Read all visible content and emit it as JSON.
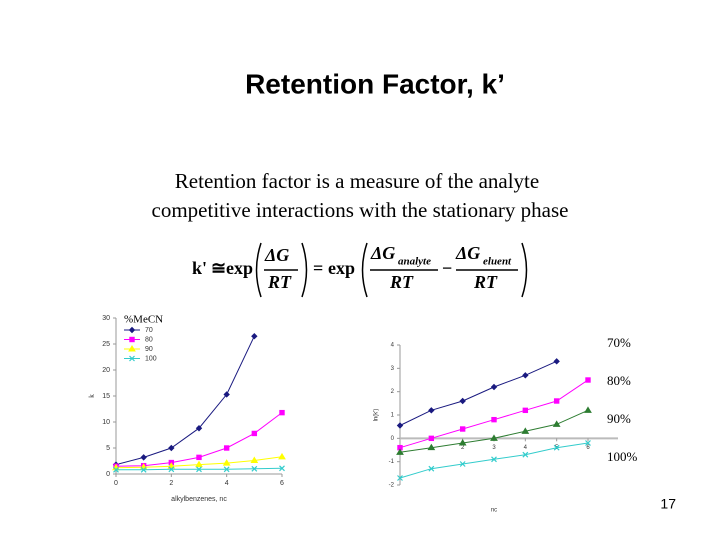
{
  "title": "Retention Factor, k’",
  "text": [
    "Retention factor is a measure of the analyte",
    "competitive interactions with the stationary phase"
  ],
  "formula": {
    "lhs": "k'",
    "approx": "≅",
    "exp": "exp",
    "dG": "ΔG",
    "rt": "RT",
    "eq": "=",
    "analyte": "analyte",
    "eluent": "eluent",
    "minus": "−"
  },
  "slide_number": "17",
  "chart_data": [
    {
      "type": "line",
      "x_label": "alkylbenzenes, nc",
      "y_label": "k",
      "legend_title": "%MeCN",
      "legend": "upper-left",
      "x": [
        0,
        1,
        2,
        3,
        4,
        5,
        6
      ],
      "xlim": [
        0,
        6
      ],
      "xticks": [
        0,
        2,
        4,
        6
      ],
      "ylim": [
        0,
        30
      ],
      "yticks": [
        0,
        5,
        10,
        15,
        20,
        25,
        30
      ],
      "series": [
        {
          "name": "70",
          "color": "#1a1a80",
          "marker": "diamond",
          "values": [
            1.8,
            3.2,
            5,
            8.8,
            15.3,
            26.5,
            null
          ]
        },
        {
          "name": "80",
          "color": "#ff00ff",
          "marker": "square",
          "values": [
            1.5,
            1.6,
            2.2,
            3.2,
            5,
            7.8,
            11.8
          ]
        },
        {
          "name": "90",
          "color": "#ffff00",
          "marker": "triangle",
          "values": [
            1.2,
            1.3,
            1.5,
            1.8,
            2.1,
            2.6,
            3.3
          ]
        },
        {
          "name": "100",
          "color": "#33cccc",
          "marker": "x",
          "values": [
            0.8,
            0.8,
            0.9,
            0.9,
            0.9,
            1,
            1.1
          ]
        }
      ]
    },
    {
      "type": "line",
      "x_label": "nc",
      "y_label": "ln(k')",
      "legend": "right",
      "zero_line": true,
      "x": [
        0,
        1,
        2,
        3,
        4,
        5,
        6
      ],
      "xlim": [
        0,
        6
      ],
      "xticks": [
        2,
        3,
        4,
        5,
        6
      ],
      "ylim": [
        -2,
        4
      ],
      "yticks": [
        -2,
        -1,
        0,
        1,
        2,
        3,
        4
      ],
      "series": [
        {
          "name": "70%",
          "color": "#1a1a80",
          "marker": "diamond",
          "values": [
            0.55,
            1.2,
            1.6,
            2.2,
            2.7,
            3.3,
            null
          ]
        },
        {
          "name": "80%",
          "color": "#ff00ff",
          "marker": "square",
          "values": [
            -0.4,
            0,
            0.4,
            0.8,
            1.2,
            1.6,
            2.5
          ]
        },
        {
          "name": "90%",
          "color": "#2e7d32",
          "marker": "triangle",
          "values": [
            -0.6,
            -0.4,
            -0.2,
            0,
            0.3,
            0.6,
            1.2
          ]
        },
        {
          "name": "100%",
          "color": "#33cccc",
          "marker": "x",
          "values": [
            -1.7,
            -1.3,
            -1.1,
            -0.9,
            -0.7,
            -0.4,
            -0.2
          ]
        }
      ]
    }
  ]
}
